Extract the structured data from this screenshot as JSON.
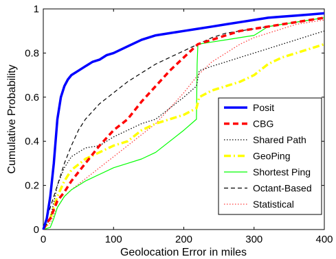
{
  "chart_data": {
    "type": "line",
    "xlabel": "Geolocation Error in miles",
    "ylabel": "Cumulative Probability",
    "xlim": [
      0,
      400
    ],
    "ylim": [
      0,
      1
    ],
    "xticks": [
      0,
      100,
      200,
      300,
      400
    ],
    "yticks": [
      0,
      0.2,
      0.4,
      0.6,
      0.8,
      1
    ],
    "xtick_labels": [
      "0",
      "100",
      "200",
      "300",
      "400"
    ],
    "ytick_labels": [
      "0",
      "0.2",
      "0.4",
      "0.6",
      "0.8",
      "1"
    ],
    "grid": false,
    "legend_position": "lower-right",
    "series": [
      {
        "name": "Posit",
        "color": "#0000ff",
        "style": "solid-thick",
        "x": [
          0,
          5,
          10,
          15,
          20,
          25,
          30,
          35,
          40,
          50,
          60,
          70,
          80,
          90,
          100,
          120,
          140,
          160,
          180,
          200,
          220,
          240,
          260,
          280,
          300,
          320,
          340,
          360,
          380,
          400
        ],
        "y": [
          0,
          0.05,
          0.15,
          0.3,
          0.5,
          0.6,
          0.65,
          0.68,
          0.7,
          0.72,
          0.74,
          0.76,
          0.77,
          0.79,
          0.8,
          0.83,
          0.86,
          0.88,
          0.89,
          0.9,
          0.91,
          0.92,
          0.93,
          0.94,
          0.95,
          0.96,
          0.965,
          0.97,
          0.975,
          0.98
        ]
      },
      {
        "name": "CBG",
        "color": "#ff0000",
        "style": "dashed-thick",
        "x": [
          0,
          5,
          10,
          20,
          30,
          40,
          60,
          80,
          100,
          120,
          140,
          160,
          180,
          200,
          220,
          240,
          260,
          280,
          300,
          320,
          340,
          360,
          380,
          400
        ],
        "y": [
          0,
          0.03,
          0.05,
          0.13,
          0.17,
          0.22,
          0.3,
          0.38,
          0.45,
          0.5,
          0.58,
          0.65,
          0.72,
          0.78,
          0.84,
          0.86,
          0.88,
          0.9,
          0.91,
          0.92,
          0.93,
          0.94,
          0.95,
          0.96
        ]
      },
      {
        "name": "Shared Path",
        "color": "#000000",
        "style": "dotted",
        "x": [
          0,
          10,
          20,
          30,
          40,
          60,
          80,
          100,
          120,
          140,
          160,
          180,
          200,
          218,
          222,
          240,
          260,
          280,
          300,
          320,
          340,
          360,
          380,
          400
        ],
        "y": [
          0,
          0.05,
          0.2,
          0.28,
          0.33,
          0.37,
          0.38,
          0.42,
          0.45,
          0.48,
          0.5,
          0.55,
          0.6,
          0.65,
          0.72,
          0.74,
          0.76,
          0.78,
          0.8,
          0.82,
          0.84,
          0.86,
          0.88,
          0.9
        ]
      },
      {
        "name": "GeoPing",
        "color": "#ffff00",
        "style": "dash-dot-thick",
        "x": [
          0,
          10,
          20,
          30,
          40,
          60,
          80,
          100,
          120,
          140,
          160,
          180,
          200,
          218,
          222,
          240,
          260,
          280,
          300,
          320,
          340,
          360,
          380,
          400
        ],
        "y": [
          0,
          0.05,
          0.15,
          0.22,
          0.27,
          0.32,
          0.35,
          0.38,
          0.4,
          0.45,
          0.48,
          0.5,
          0.52,
          0.55,
          0.6,
          0.63,
          0.65,
          0.67,
          0.7,
          0.75,
          0.78,
          0.8,
          0.82,
          0.84
        ]
      },
      {
        "name": "Shortest Ping",
        "color": "#00ff00",
        "style": "solid",
        "x": [
          0,
          10,
          15,
          20,
          30,
          40,
          60,
          80,
          100,
          120,
          140,
          160,
          180,
          200,
          218,
          219,
          220,
          240,
          260,
          280,
          300,
          310,
          320,
          340,
          360,
          380,
          400
        ],
        "y": [
          0,
          0.01,
          0.05,
          0.1,
          0.15,
          0.18,
          0.22,
          0.25,
          0.28,
          0.3,
          0.32,
          0.35,
          0.4,
          0.45,
          0.5,
          0.75,
          0.84,
          0.85,
          0.86,
          0.87,
          0.88,
          0.9,
          0.92,
          0.93,
          0.94,
          0.95,
          0.96
        ]
      },
      {
        "name": "Octant-Based",
        "color": "#000000",
        "style": "dashed",
        "x": [
          0,
          5,
          10,
          15,
          20,
          30,
          40,
          50,
          60,
          80,
          100,
          120,
          140,
          160,
          180,
          200,
          220,
          240,
          260,
          280,
          300,
          320,
          340,
          360,
          380,
          400
        ],
        "y": [
          0,
          0.05,
          0.1,
          0.15,
          0.2,
          0.3,
          0.38,
          0.45,
          0.5,
          0.57,
          0.62,
          0.67,
          0.71,
          0.75,
          0.78,
          0.81,
          0.84,
          0.87,
          0.89,
          0.9,
          0.91,
          0.92,
          0.93,
          0.94,
          0.95,
          0.96
        ]
      },
      {
        "name": "Statistical",
        "color": "#ff3b3b",
        "style": "dotted",
        "x": [
          0,
          10,
          20,
          30,
          40,
          60,
          80,
          100,
          120,
          140,
          160,
          180,
          200,
          220,
          240,
          260,
          280,
          300,
          320,
          340,
          360,
          380,
          400
        ],
        "y": [
          0,
          0.03,
          0.1,
          0.15,
          0.18,
          0.23,
          0.28,
          0.33,
          0.38,
          0.43,
          0.48,
          0.55,
          0.62,
          0.7,
          0.76,
          0.8,
          0.84,
          0.87,
          0.89,
          0.91,
          0.93,
          0.94,
          0.95
        ]
      }
    ]
  }
}
